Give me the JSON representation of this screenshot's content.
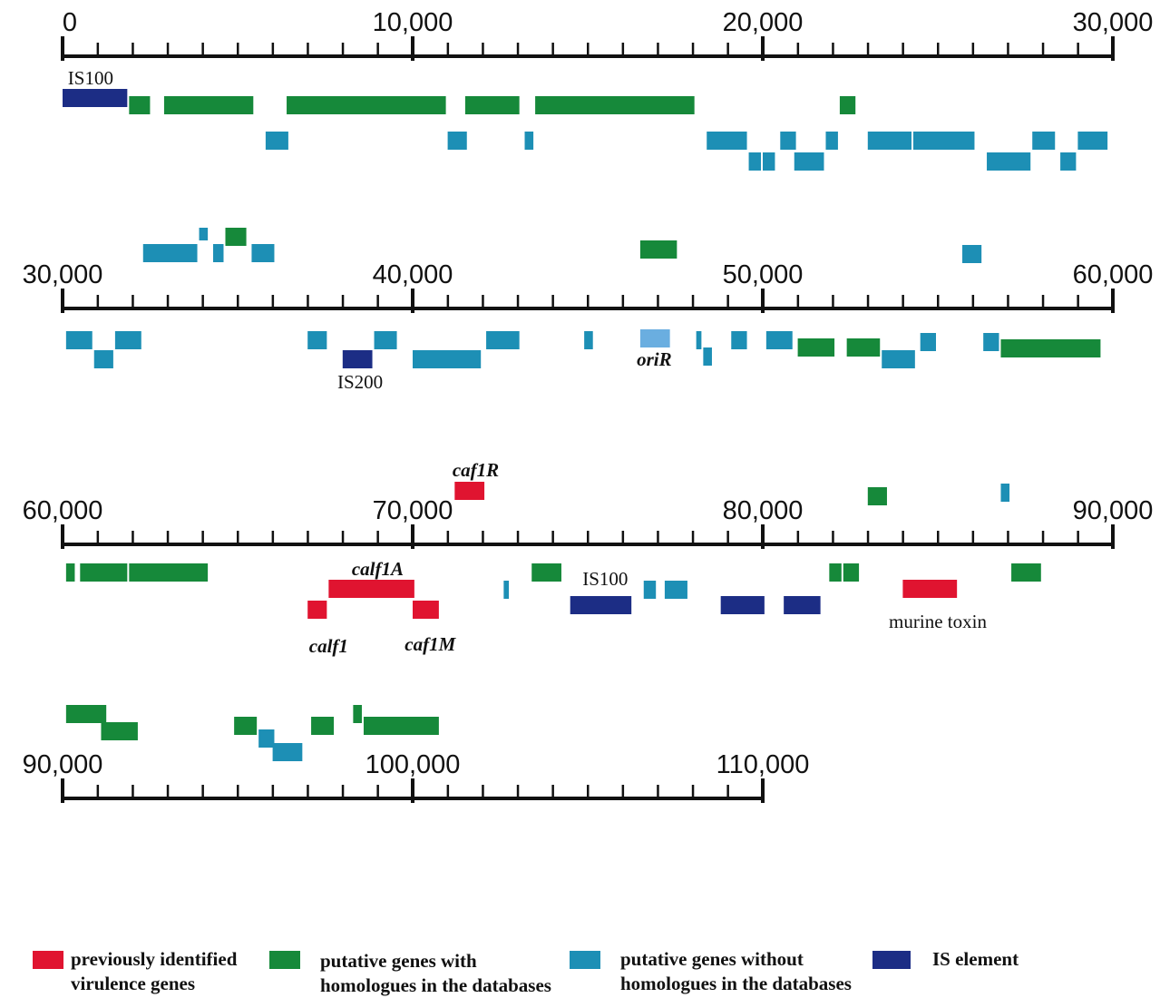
{
  "colors": {
    "virulence": "#e01430",
    "with_homologues": "#16893a",
    "without_homologues": "#1d8fb5",
    "is_element": "#1c2d85",
    "origin": "#6aaee0",
    "axis": "#111111"
  },
  "rows": [
    {
      "ticks": [
        "0",
        "10,000",
        "20,000",
        "30,000"
      ],
      "features": [
        {
          "start": 0,
          "end": 1900,
          "type": "is_element"
        },
        {
          "start": 1900,
          "end": 2550,
          "type": "with_homologues"
        },
        {
          "start": 2900,
          "end": 5500,
          "type": "with_homologues"
        },
        {
          "start": 6400,
          "end": 11000,
          "type": "with_homologues"
        },
        {
          "start": 11500,
          "end": 13100,
          "type": "with_homologues"
        },
        {
          "start": 13500,
          "end": 18100,
          "type": "with_homologues"
        },
        {
          "start": 22200,
          "end": 22700,
          "type": "with_homologues"
        },
        {
          "start": 5800,
          "end": 6500,
          "type": "without_homologues"
        },
        {
          "start": 11000,
          "end": 11600,
          "type": "without_homologues"
        },
        {
          "start": 13200,
          "end": 13500,
          "type": "without_homologues"
        },
        {
          "start": 18400,
          "end": 19600,
          "type": "without_homologues"
        },
        {
          "start": 19600,
          "end": 20000,
          "type": "without_homologues"
        },
        {
          "start": 20000,
          "end": 20400,
          "type": "without_homologues"
        },
        {
          "start": 20500,
          "end": 21000,
          "type": "without_homologues"
        },
        {
          "start": 20900,
          "end": 21800,
          "type": "without_homologues"
        },
        {
          "start": 21800,
          "end": 22200,
          "type": "without_homologues"
        },
        {
          "start": 23000,
          "end": 24300,
          "type": "without_homologues"
        },
        {
          "start": 24300,
          "end": 26100,
          "type": "without_homologues"
        },
        {
          "start": 26400,
          "end": 27700,
          "type": "without_homologues"
        },
        {
          "start": 27700,
          "end": 28400,
          "type": "without_homologues"
        },
        {
          "start": 28500,
          "end": 29000,
          "type": "without_homologues"
        },
        {
          "start": 29000,
          "end": 29900,
          "type": "without_homologues"
        }
      ],
      "labels": [
        {
          "text": "IS100",
          "pos": 800,
          "style": "normal"
        }
      ]
    },
    {
      "ticks": [
        "30,000",
        "40,000",
        "50,000",
        "60,000"
      ],
      "features": [
        {
          "start": 32300,
          "end": 33900,
          "type": "without_homologues"
        },
        {
          "start": 33900,
          "end": 34200,
          "type": "without_homologues"
        },
        {
          "start": 34300,
          "end": 34650,
          "type": "without_homologues"
        },
        {
          "start": 34650,
          "end": 35300,
          "type": "with_homologues"
        },
        {
          "start": 35400,
          "end": 36100,
          "type": "without_homologues"
        },
        {
          "start": 46500,
          "end": 47600,
          "type": "with_homologues"
        },
        {
          "start": 55700,
          "end": 56300,
          "type": "without_homologues"
        },
        {
          "start": 30100,
          "end": 30900,
          "type": "without_homologues"
        },
        {
          "start": 30900,
          "end": 31500,
          "type": "without_homologues"
        },
        {
          "start": 31500,
          "end": 32300,
          "type": "without_homologues"
        },
        {
          "start": 37000,
          "end": 37600,
          "type": "without_homologues"
        },
        {
          "start": 38000,
          "end": 38900,
          "type": "is_element"
        },
        {
          "start": 38900,
          "end": 39600,
          "type": "without_homologues"
        },
        {
          "start": 40000,
          "end": 42000,
          "type": "without_homologues"
        },
        {
          "start": 42100,
          "end": 43100,
          "type": "without_homologues"
        },
        {
          "start": 44900,
          "end": 45200,
          "type": "without_homologues"
        },
        {
          "start": 46500,
          "end": 47400,
          "type": "origin"
        },
        {
          "start": 48100,
          "end": 48300,
          "type": "without_homologues"
        },
        {
          "start": 48300,
          "end": 48600,
          "type": "without_homologues"
        },
        {
          "start": 49100,
          "end": 49600,
          "type": "without_homologues"
        },
        {
          "start": 50100,
          "end": 50900,
          "type": "without_homologues"
        },
        {
          "start": 51000,
          "end": 52100,
          "type": "with_homologues"
        },
        {
          "start": 52400,
          "end": 53400,
          "type": "with_homologues"
        },
        {
          "start": 53400,
          "end": 54400,
          "type": "without_homologues"
        },
        {
          "start": 54500,
          "end": 55000,
          "type": "without_homologues"
        },
        {
          "start": 56300,
          "end": 56800,
          "type": "without_homologues"
        },
        {
          "start": 56800,
          "end": 59700,
          "type": "with_homologues"
        }
      ],
      "labels": [
        {
          "text": "IS200",
          "pos": 38500,
          "style": "normal"
        },
        {
          "text": "oriR",
          "pos": 46900,
          "style": "italic"
        }
      ]
    },
    {
      "ticks": [
        "60,000",
        "70,000",
        "80,000",
        "90,000"
      ],
      "features": [
        {
          "start": 71200,
          "end": 72100,
          "type": "virulence"
        },
        {
          "start": 83000,
          "end": 83600,
          "type": "with_homologues"
        },
        {
          "start": 86800,
          "end": 87100,
          "type": "without_homologues"
        },
        {
          "start": 60100,
          "end": 60400,
          "type": "with_homologues"
        },
        {
          "start": 60500,
          "end": 61900,
          "type": "with_homologues"
        },
        {
          "start": 61900,
          "end": 64200,
          "type": "with_homologues"
        },
        {
          "start": 67000,
          "end": 67600,
          "type": "virulence"
        },
        {
          "start": 67600,
          "end": 70100,
          "type": "virulence"
        },
        {
          "start": 70000,
          "end": 70800,
          "type": "virulence"
        },
        {
          "start": 72600,
          "end": 72800,
          "type": "without_homologues"
        },
        {
          "start": 73400,
          "end": 74300,
          "type": "with_homologues"
        },
        {
          "start": 74500,
          "end": 76300,
          "type": "is_element"
        },
        {
          "start": 76600,
          "end": 77000,
          "type": "without_homologues"
        },
        {
          "start": 77200,
          "end": 77900,
          "type": "without_homologues"
        },
        {
          "start": 78800,
          "end": 80100,
          "type": "is_element"
        },
        {
          "start": 80600,
          "end": 81700,
          "type": "is_element"
        },
        {
          "start": 81900,
          "end": 82300,
          "type": "with_homologues"
        },
        {
          "start": 82300,
          "end": 82800,
          "type": "with_homologues"
        },
        {
          "start": 84000,
          "end": 85600,
          "type": "virulence"
        },
        {
          "start": 87100,
          "end": 88000,
          "type": "with_homologues"
        }
      ],
      "labels": [
        {
          "text": "caf1R",
          "pos": 71800,
          "style": "italic"
        },
        {
          "text": "calf1A",
          "pos": 69000,
          "style": "italic"
        },
        {
          "text": "IS100",
          "pos": 75500,
          "style": "normal"
        },
        {
          "text": "calf1",
          "pos": 67600,
          "style": "italic"
        },
        {
          "text": "caf1M",
          "pos": 70500,
          "style": "italic"
        },
        {
          "text": "murine toxin",
          "pos": 85000,
          "style": "normal"
        }
      ]
    },
    {
      "ticks": [
        "90,000",
        "100,000",
        "110,000"
      ],
      "features": [
        {
          "start": 90100,
          "end": 91300,
          "type": "with_homologues"
        },
        {
          "start": 91100,
          "end": 92200,
          "type": "with_homologues"
        },
        {
          "start": 94900,
          "end": 95600,
          "type": "with_homologues"
        },
        {
          "start": 95600,
          "end": 96100,
          "type": "without_homologues"
        },
        {
          "start": 96000,
          "end": 96900,
          "type": "without_homologues"
        },
        {
          "start": 97100,
          "end": 97800,
          "type": "with_homologues"
        },
        {
          "start": 98300,
          "end": 98600,
          "type": "with_homologues"
        },
        {
          "start": 98600,
          "end": 100800,
          "type": "with_homologues"
        }
      ],
      "labels": []
    }
  ],
  "legend": [
    {
      "type": "virulence",
      "line1": "previously identified",
      "line2": "virulence genes"
    },
    {
      "type": "with_homologues",
      "line1": "putative genes with",
      "line2": "homologues in the databases"
    },
    {
      "type": "without_homologues",
      "line1": "putative genes without",
      "line2": "homologues in the databases"
    },
    {
      "type": "is_element",
      "line1": "IS element",
      "line2": ""
    }
  ]
}
